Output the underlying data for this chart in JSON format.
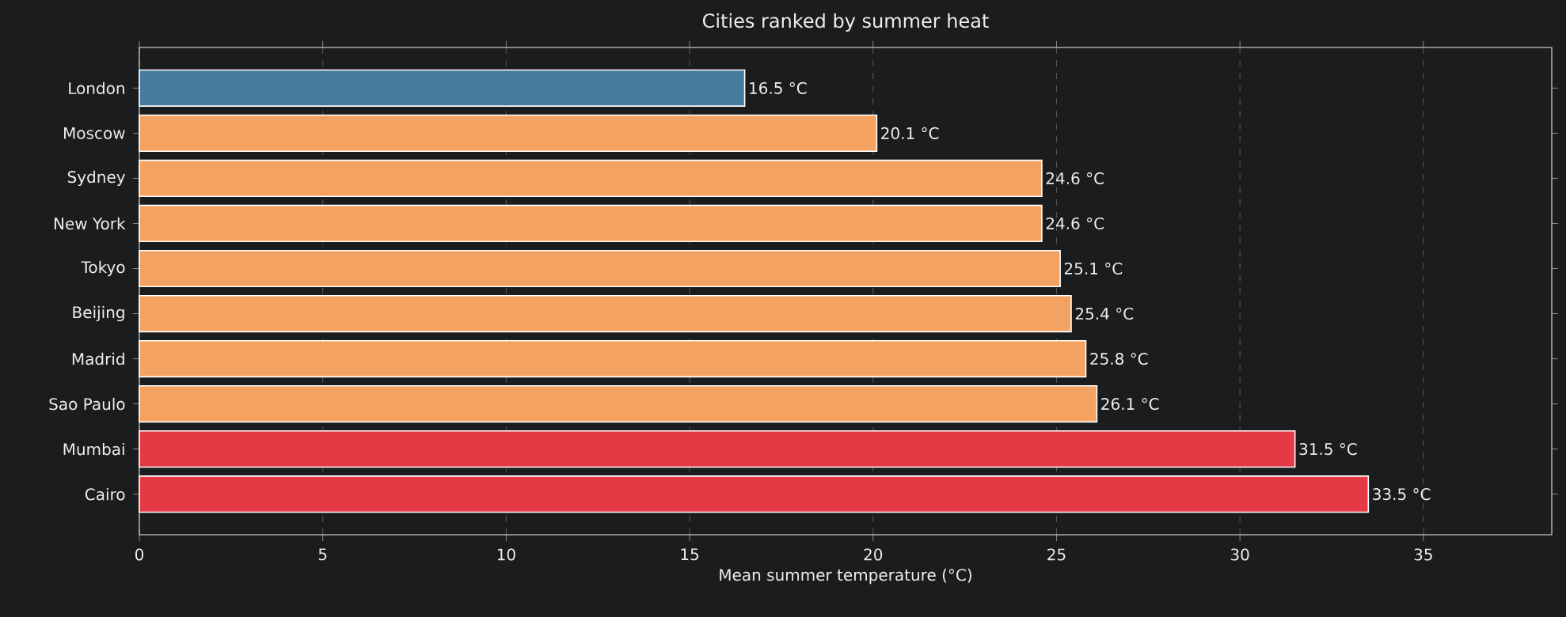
{
  "chart_data": {
    "type": "bar",
    "orientation": "horizontal",
    "title": "Cities ranked by summer heat",
    "xlabel": "Mean summer temperature (°C)",
    "categories": [
      "London",
      "Moscow",
      "Sydney",
      "New York",
      "Tokyo",
      "Beijing",
      "Madrid",
      "Sao Paulo",
      "Mumbai",
      "Cairo"
    ],
    "values": [
      16.5,
      20.1,
      24.6,
      24.6,
      25.1,
      25.4,
      25.8,
      26.1,
      31.5,
      33.5
    ],
    "colors": [
      "#457b9d",
      "#f4a261",
      "#f4a261",
      "#f4a261",
      "#f4a261",
      "#f4a261",
      "#f4a261",
      "#f4a261",
      "#e63946",
      "#e63946"
    ],
    "value_labels": [
      "16.5 °C",
      "20.1 °C",
      "24.6 °C",
      "24.6 °C",
      "25.1 °C",
      "25.4 °C",
      "25.8 °C",
      "26.1 °C",
      "31.5 °C",
      "33.5 °C"
    ],
    "xlim": [
      0,
      38.5
    ],
    "xticks": [
      0,
      5,
      10,
      15,
      20,
      25,
      30,
      35
    ],
    "grid": "x"
  }
}
